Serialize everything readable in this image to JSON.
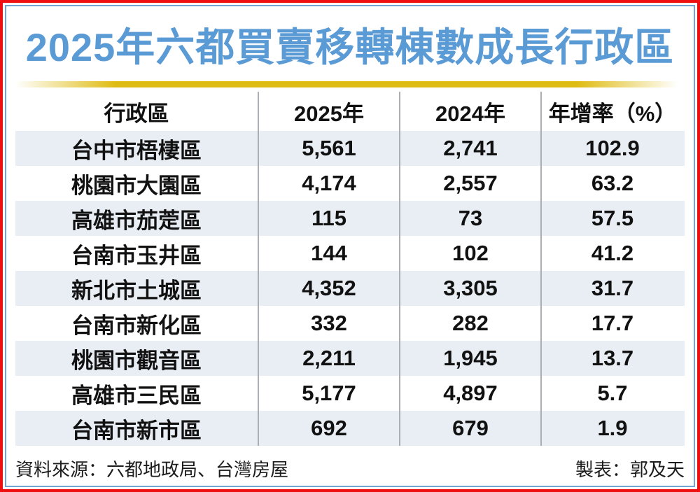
{
  "title": "2025年六都買賣移轉棟數成長行政區",
  "colors": {
    "title_blue": "#5B9BD5",
    "border_red": "#EE1010",
    "border_blue": "#71A3D3",
    "gold_bar": "#DFBC13",
    "band_blue": "#E9EEF4",
    "divider_gray": "#ABAEB3"
  },
  "table": {
    "headers": [
      "行政區",
      "2025年",
      "2024年",
      "年增率（%）"
    ],
    "rows": [
      {
        "district": "台中市梧棲區",
        "y2025": "5,561",
        "y2024": "2,741",
        "yoy": "102.9"
      },
      {
        "district": "桃園市大園區",
        "y2025": "4,174",
        "y2024": "2,557",
        "yoy": "63.2"
      },
      {
        "district": "高雄市茄萣區",
        "y2025": "115",
        "y2024": "73",
        "yoy": "57.5"
      },
      {
        "district": "台南市玉井區",
        "y2025": "144",
        "y2024": "102",
        "yoy": "41.2"
      },
      {
        "district": "新北市土城區",
        "y2025": "4,352",
        "y2024": "3,305",
        "yoy": "31.7"
      },
      {
        "district": "台南市新化區",
        "y2025": "332",
        "y2024": "282",
        "yoy": "17.7"
      },
      {
        "district": "桃園市觀音區",
        "y2025": "2,211",
        "y2024": "1,945",
        "yoy": "13.7"
      },
      {
        "district": "高雄市三民區",
        "y2025": "5,177",
        "y2024": "4,897",
        "yoy": "5.7"
      },
      {
        "district": "台南市新市區",
        "y2025": "692",
        "y2024": "679",
        "yoy": "1.9"
      }
    ]
  },
  "footer": {
    "source": "資料來源：六都地政局、台灣房屋",
    "credit": "製表：郭及天"
  },
  "chart_data": {
    "type": "table",
    "title": "2025年六都買賣移轉棟數成長行政區",
    "columns": [
      "行政區",
      "2025年",
      "2024年",
      "年增率（%）"
    ],
    "rows": [
      [
        "台中市梧棲區",
        5561,
        2741,
        102.9
      ],
      [
        "桃園市大園區",
        4174,
        2557,
        63.2
      ],
      [
        "高雄市茄萣區",
        115,
        73,
        57.5
      ],
      [
        "台南市玉井區",
        144,
        102,
        41.2
      ],
      [
        "新北市土城區",
        4352,
        3305,
        31.7
      ],
      [
        "台南市新化區",
        332,
        282,
        17.7
      ],
      [
        "桃園市觀音區",
        2211,
        1945,
        13.7
      ],
      [
        "高雄市三民區",
        5177,
        4897,
        5.7
      ],
      [
        "台南市新市區",
        692,
        679,
        1.9
      ]
    ],
    "source": "資料來源：六都地政局、台灣房屋",
    "credit": "製表：郭及天"
  }
}
